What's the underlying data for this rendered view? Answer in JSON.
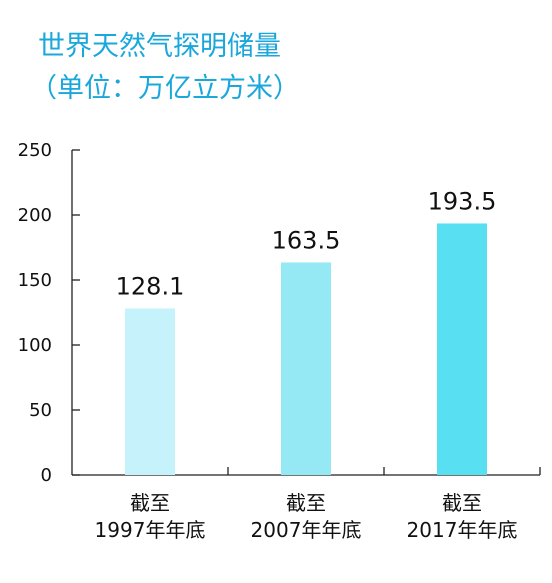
{
  "chart_data": {
    "type": "bar",
    "title": "世界天然气探明储量",
    "subtitle": "（单位：万亿立方米）",
    "categories": [
      [
        "截至",
        "1997年年底"
      ],
      [
        "截至",
        "2007年年底"
      ],
      [
        "截至",
        "2017年年底"
      ]
    ],
    "values": [
      128.1,
      163.5,
      193.5
    ],
    "value_labels": [
      "128.1",
      "163.5",
      "193.5"
    ],
    "bar_colors": [
      "#c6f3fb",
      "#95e9f5",
      "#58dff1"
    ],
    "title_color": "#1aa7dc",
    "ylim": [
      0,
      250
    ],
    "yticks": [
      0,
      50,
      100,
      150,
      200,
      250
    ],
    "ytick_labels": [
      "0",
      "50",
      "100",
      "150",
      "200",
      "250"
    ],
    "grid": false,
    "legend": "none"
  }
}
